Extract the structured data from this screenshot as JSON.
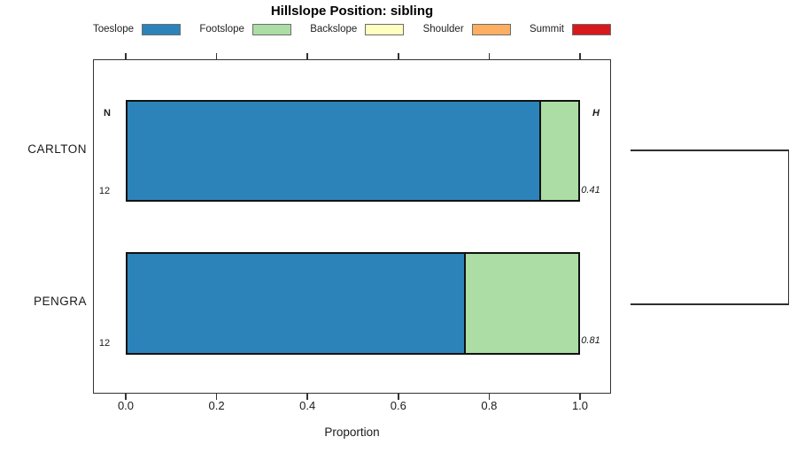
{
  "chart_data": {
    "type": "bar",
    "variant": "horizontal-stacked-proportion",
    "title": "Hillslope Position: sibling",
    "xlabel": "Proportion",
    "xlim": [
      0,
      1
    ],
    "xticks": [
      "0.0",
      "0.2",
      "0.4",
      "0.6",
      "0.8",
      "1.0"
    ],
    "grid": false,
    "legend": {
      "position": "top",
      "entries": [
        {
          "label": "Toeslope",
          "color": "#2B83BA"
        },
        {
          "label": "Footslope",
          "color": "#ABDDA4"
        },
        {
          "label": "Backslope",
          "color": "#FFFFBF"
        },
        {
          "label": "Shoulder",
          "color": "#FDAE61"
        },
        {
          "label": "Summit",
          "color": "#D7191C"
        }
      ]
    },
    "column_annotations": {
      "left_header": "N",
      "right_header": "H"
    },
    "series_rows": [
      {
        "label": "CARLTON",
        "n": "12",
        "shannon_h": "0.41",
        "segments": [
          {
            "name": "Toeslope",
            "proportion": 0.917,
            "color": "#2B83BA"
          },
          {
            "name": "Footslope",
            "proportion": 0.083,
            "color": "#ABDDA4"
          }
        ]
      },
      {
        "label": "PENGRA",
        "n": "12",
        "shannon_h": "0.81",
        "segments": [
          {
            "name": "Toeslope",
            "proportion": 0.75,
            "color": "#2B83BA"
          },
          {
            "name": "Footslope",
            "proportion": 0.25,
            "color": "#ABDDA4"
          }
        ]
      }
    ],
    "dendrogram": {
      "present": true,
      "side": "right",
      "joins": [
        "CARLTON",
        "PENGRA"
      ]
    }
  }
}
